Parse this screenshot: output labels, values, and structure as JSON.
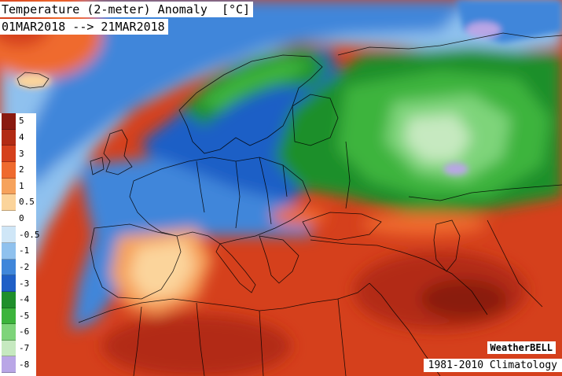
{
  "title": "Temperature (2-meter) Anomaly",
  "units": "[°C]",
  "date_range": "01MAR2018 --> 21MAR2018",
  "branding": "WeatherBELL",
  "climatology": "1981-2010 Climatology",
  "legend": [
    {
      "label": "5",
      "color": "#8a1a10"
    },
    {
      "label": "4",
      "color": "#b22b14"
    },
    {
      "label": "3",
      "color": "#d5401c"
    },
    {
      "label": "2",
      "color": "#ef6a2e"
    },
    {
      "label": "1",
      "color": "#f6a25c"
    },
    {
      "label": "0.5",
      "color": "#fbd49b"
    },
    {
      "label": "0",
      "color": "#ffffff"
    },
    {
      "label": "-0.5",
      "color": "#cfe6f7"
    },
    {
      "label": "-1",
      "color": "#8fc1ee"
    },
    {
      "label": "-2",
      "color": "#3f86da"
    },
    {
      "label": "-3",
      "color": "#1f5fc6"
    },
    {
      "label": "-4",
      "color": "#1f8f2b"
    },
    {
      "label": "-5",
      "color": "#3cb43c"
    },
    {
      "label": "-6",
      "color": "#7ed47a"
    },
    {
      "label": "-7",
      "color": "#c6e9c0"
    },
    {
      "label": "-8",
      "color": "#b9a6e6"
    }
  ]
}
